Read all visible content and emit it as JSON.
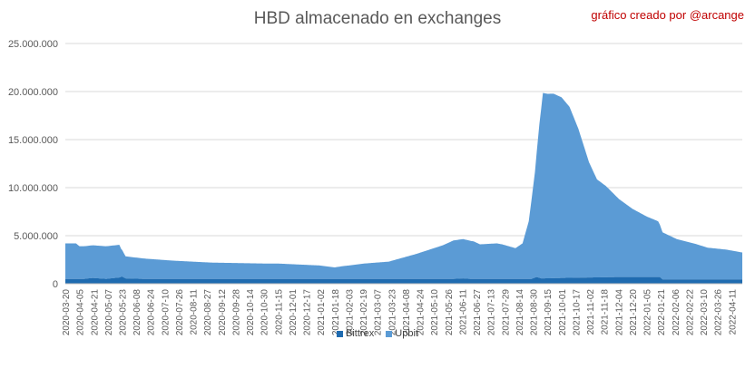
{
  "chart_data": {
    "type": "area",
    "stacked": true,
    "title": "HBD almacenado en exchanges",
    "credit": "gráfico creado por @arcange",
    "xlabel": "",
    "ylabel": "",
    "ylim": [
      0,
      25000000
    ],
    "yticks": [
      0,
      5000000,
      10000000,
      15000000,
      20000000,
      25000000
    ],
    "ytick_labels": [
      "0",
      "5.000.000",
      "10.000.000",
      "15.000.000",
      "20.000.000",
      "25.000.000"
    ],
    "grid": true,
    "legend_position": "bottom",
    "x_start": "2020-03-20",
    "x_end": "2022-04-23",
    "xtick_labels": [
      "2020-03-20",
      "2020-04-05",
      "2020-04-21",
      "2020-05-07",
      "2020-05-23",
      "2020-06-08",
      "2020-06-24",
      "2020-07-10",
      "2020-07-26",
      "2020-08-11",
      "2020-08-27",
      "2020-09-12",
      "2020-09-28",
      "2020-10-14",
      "2020-10-30",
      "2020-11-15",
      "2020-12-01",
      "2020-12-17",
      "2021-01-02",
      "2021-01-18",
      "2021-02-03",
      "2021-02-19",
      "2021-03-07",
      "2021-03-23",
      "2021-04-08",
      "2021-04-24",
      "2021-05-10",
      "2021-05-26",
      "2021-06-11",
      "2021-06-27",
      "2021-07-13",
      "2021-07-29",
      "2021-08-14",
      "2021-08-30",
      "2021-09-15",
      "2021-10-01",
      "2021-10-17",
      "2021-11-02",
      "2021-11-18",
      "2021-12-04",
      "2021-12-20",
      "2022-01-05",
      "2022-01-21",
      "2022-02-06",
      "2022-02-22",
      "2022-03-10",
      "2022-03-26",
      "2022-04-11"
    ],
    "series": [
      {
        "name": "Bittrex",
        "color": "#1f6bb0",
        "x": [
          "2020-03-20",
          "2020-04-10",
          "2020-04-20",
          "2020-05-05",
          "2020-05-20",
          "2020-05-23",
          "2020-05-27",
          "2020-06-15",
          "2020-08-01",
          "2020-10-01",
          "2020-12-01",
          "2021-02-01",
          "2021-04-01",
          "2021-06-01",
          "2021-06-12",
          "2021-06-20",
          "2021-08-01",
          "2021-08-28",
          "2021-09-03",
          "2021-09-08",
          "2021-10-01",
          "2021-12-06",
          "2022-01-20",
          "2022-01-23",
          "2022-04-23"
        ],
        "values": [
          500000,
          500000,
          600000,
          500000,
          650000,
          750000,
          550000,
          500000,
          500000,
          500000,
          500000,
          500000,
          500000,
          500000,
          550000,
          500000,
          500000,
          500000,
          700000,
          550000,
          600000,
          700000,
          700000,
          450000,
          450000
        ]
      },
      {
        "name": "Upbit",
        "color": "#5b9bd5",
        "x": [
          "2020-03-20",
          "2020-04-01",
          "2020-04-05",
          "2020-05-20",
          "2020-05-22",
          "2020-05-27",
          "2020-06-20",
          "2020-07-20",
          "2020-09-01",
          "2020-11-01",
          "2020-11-15",
          "2021-01-01",
          "2021-01-18",
          "2021-01-25",
          "2021-02-20",
          "2021-03-20",
          "2021-04-20",
          "2021-05-20",
          "2021-06-01",
          "2021-06-12",
          "2021-06-24",
          "2021-07-01",
          "2021-07-20",
          "2021-07-26",
          "2021-08-10",
          "2021-08-18",
          "2021-08-25",
          "2021-09-01",
          "2021-09-06",
          "2021-09-10",
          "2021-09-15",
          "2021-09-22",
          "2021-10-01",
          "2021-10-10",
          "2021-10-20",
          "2021-11-01",
          "2021-11-10",
          "2021-11-20",
          "2021-12-05",
          "2021-12-20",
          "2022-01-05",
          "2022-01-18",
          "2022-01-23",
          "2022-02-08",
          "2022-03-01",
          "2022-03-15",
          "2022-04-05",
          "2022-04-23"
        ],
        "values": [
          3700000,
          3700000,
          3400000,
          3400000,
          2900000,
          2300000,
          2100000,
          1900000,
          1700000,
          1600000,
          1600000,
          1400000,
          1200000,
          1300000,
          1600000,
          1800000,
          2600000,
          3500000,
          4000000,
          4100000,
          3900000,
          3600000,
          3700000,
          3600000,
          3200000,
          3700000,
          6000000,
          11000000,
          16000000,
          19300000,
          19200000,
          19200000,
          18800000,
          17800000,
          15500000,
          12000000,
          10200000,
          9500000,
          8100000,
          7100000,
          6300000,
          5800000,
          4900000,
          4200000,
          3700000,
          3300000,
          3100000,
          2800000
        ]
      }
    ]
  }
}
